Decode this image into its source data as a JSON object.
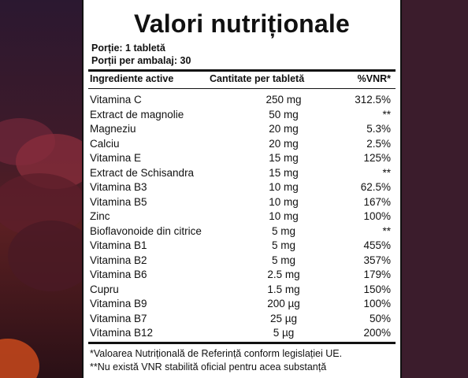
{
  "label": {
    "title": "Valori nutriționale",
    "serving": "Porție: 1 tabletă",
    "servings_per_pack": "Porții per ambalaj: 30",
    "columns": {
      "ingredient": "Ingrediente active",
      "amount": "Cantitate per tabletă",
      "vnr": "%VNR*"
    },
    "rows": [
      {
        "name": "Vitamina C",
        "amount": "250 mg",
        "vnr": "312.5%"
      },
      {
        "name": "Extract de magnolie",
        "amount": "50 mg",
        "vnr": "**"
      },
      {
        "name": "Magneziu",
        "amount": "20 mg",
        "vnr": "5.3%"
      },
      {
        "name": "Calciu",
        "amount": "20 mg",
        "vnr": "2.5%"
      },
      {
        "name": "Vitamina E",
        "amount": "15 mg",
        "vnr": "125%"
      },
      {
        "name": "Extract de Schisandra",
        "amount": "15 mg",
        "vnr": "**"
      },
      {
        "name": "Vitamina B3",
        "amount": "10 mg",
        "vnr": "62.5%"
      },
      {
        "name": "Vitamina B5",
        "amount": "10 mg",
        "vnr": "167%"
      },
      {
        "name": "Zinc",
        "amount": "10 mg",
        "vnr": "100%"
      },
      {
        "name": "Bioflavonoide din citrice",
        "amount": "5 mg",
        "vnr": "**"
      },
      {
        "name": "Vitamina B1",
        "amount": "5 mg",
        "vnr": "455%"
      },
      {
        "name": "Vitamina B2",
        "amount": "5 mg",
        "vnr": "357%"
      },
      {
        "name": "Vitamina B6",
        "amount": "2.5 mg",
        "vnr": "179%"
      },
      {
        "name": "Cupru",
        "amount": "1.5 mg",
        "vnr": "150%"
      },
      {
        "name": "Vitamina B9",
        "amount": "200 µg",
        "vnr": "100%"
      },
      {
        "name": "Vitamina B7",
        "amount": "25 µg",
        "vnr": "50%"
      },
      {
        "name": "Vitamina B12",
        "amount": "5 µg",
        "vnr": "200%"
      }
    ],
    "footnotes": [
      "*Valoarea Nutrițională de Referință conform legislației UE.",
      "**Nu există VNR stabilită oficial pentru acea substanță"
    ]
  },
  "colors": {
    "panel": "#ffffff",
    "text": "#111111",
    "background": "#3b1c2c"
  }
}
